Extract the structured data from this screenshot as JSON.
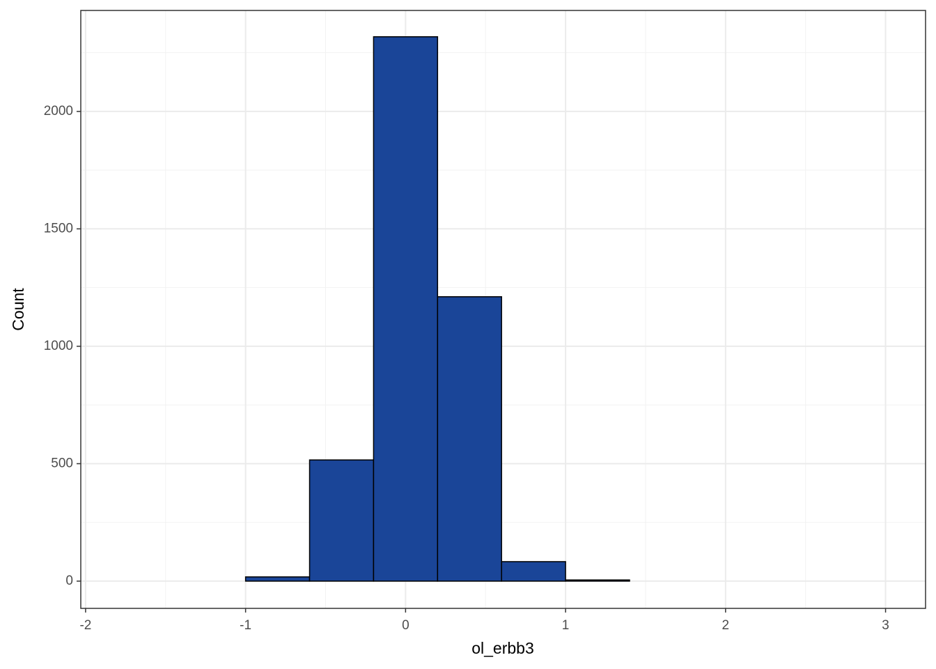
{
  "chart_data": {
    "type": "histogram",
    "x_label": "ol_erbb3",
    "y_label": "Count",
    "bins": [
      -1.8,
      -1.4,
      -1.0,
      -0.6,
      -0.2,
      0.2,
      0.6,
      1.0,
      1.4,
      1.8,
      2.2,
      2.6,
      3.0
    ],
    "values": [
      0,
      0,
      18,
      516,
      2318,
      1211,
      83,
      5,
      0,
      0,
      0,
      0
    ],
    "color": "#1a4598",
    "xlim": [
      -2.03,
      3.25
    ],
    "ylim": [
      -116,
      2430
    ],
    "xticks": [
      -2,
      -1,
      0,
      1,
      2,
      3
    ],
    "yticks": [
      0,
      500,
      1000,
      1500,
      2000
    ],
    "grid": true
  }
}
